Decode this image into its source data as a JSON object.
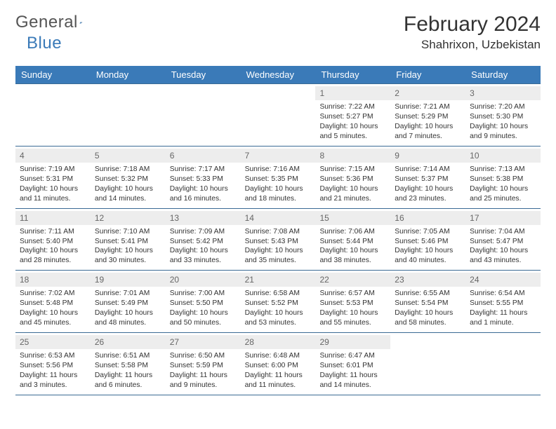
{
  "brand": {
    "word1": "General",
    "word2": "Blue"
  },
  "title": "February 2024",
  "location": "Shahrixon, Uzbekistan",
  "colors": {
    "header_bg": "#3a7ab8",
    "daynum_bg": "#ededed",
    "rule": "#3a6a94",
    "text": "#333333",
    "brand_gray": "#555555",
    "brand_blue": "#3a7ab8"
  },
  "dow": [
    "Sunday",
    "Monday",
    "Tuesday",
    "Wednesday",
    "Thursday",
    "Friday",
    "Saturday"
  ],
  "weeks": [
    [
      {
        "n": "",
        "sr": "",
        "ss": "",
        "dl": ""
      },
      {
        "n": "",
        "sr": "",
        "ss": "",
        "dl": ""
      },
      {
        "n": "",
        "sr": "",
        "ss": "",
        "dl": ""
      },
      {
        "n": "",
        "sr": "",
        "ss": "",
        "dl": ""
      },
      {
        "n": "1",
        "sr": "Sunrise: 7:22 AM",
        "ss": "Sunset: 5:27 PM",
        "dl": "Daylight: 10 hours and 5 minutes."
      },
      {
        "n": "2",
        "sr": "Sunrise: 7:21 AM",
        "ss": "Sunset: 5:29 PM",
        "dl": "Daylight: 10 hours and 7 minutes."
      },
      {
        "n": "3",
        "sr": "Sunrise: 7:20 AM",
        "ss": "Sunset: 5:30 PM",
        "dl": "Daylight: 10 hours and 9 minutes."
      }
    ],
    [
      {
        "n": "4",
        "sr": "Sunrise: 7:19 AM",
        "ss": "Sunset: 5:31 PM",
        "dl": "Daylight: 10 hours and 11 minutes."
      },
      {
        "n": "5",
        "sr": "Sunrise: 7:18 AM",
        "ss": "Sunset: 5:32 PM",
        "dl": "Daylight: 10 hours and 14 minutes."
      },
      {
        "n": "6",
        "sr": "Sunrise: 7:17 AM",
        "ss": "Sunset: 5:33 PM",
        "dl": "Daylight: 10 hours and 16 minutes."
      },
      {
        "n": "7",
        "sr": "Sunrise: 7:16 AM",
        "ss": "Sunset: 5:35 PM",
        "dl": "Daylight: 10 hours and 18 minutes."
      },
      {
        "n": "8",
        "sr": "Sunrise: 7:15 AM",
        "ss": "Sunset: 5:36 PM",
        "dl": "Daylight: 10 hours and 21 minutes."
      },
      {
        "n": "9",
        "sr": "Sunrise: 7:14 AM",
        "ss": "Sunset: 5:37 PM",
        "dl": "Daylight: 10 hours and 23 minutes."
      },
      {
        "n": "10",
        "sr": "Sunrise: 7:13 AM",
        "ss": "Sunset: 5:38 PM",
        "dl": "Daylight: 10 hours and 25 minutes."
      }
    ],
    [
      {
        "n": "11",
        "sr": "Sunrise: 7:11 AM",
        "ss": "Sunset: 5:40 PM",
        "dl": "Daylight: 10 hours and 28 minutes."
      },
      {
        "n": "12",
        "sr": "Sunrise: 7:10 AM",
        "ss": "Sunset: 5:41 PM",
        "dl": "Daylight: 10 hours and 30 minutes."
      },
      {
        "n": "13",
        "sr": "Sunrise: 7:09 AM",
        "ss": "Sunset: 5:42 PM",
        "dl": "Daylight: 10 hours and 33 minutes."
      },
      {
        "n": "14",
        "sr": "Sunrise: 7:08 AM",
        "ss": "Sunset: 5:43 PM",
        "dl": "Daylight: 10 hours and 35 minutes."
      },
      {
        "n": "15",
        "sr": "Sunrise: 7:06 AM",
        "ss": "Sunset: 5:44 PM",
        "dl": "Daylight: 10 hours and 38 minutes."
      },
      {
        "n": "16",
        "sr": "Sunrise: 7:05 AM",
        "ss": "Sunset: 5:46 PM",
        "dl": "Daylight: 10 hours and 40 minutes."
      },
      {
        "n": "17",
        "sr": "Sunrise: 7:04 AM",
        "ss": "Sunset: 5:47 PM",
        "dl": "Daylight: 10 hours and 43 minutes."
      }
    ],
    [
      {
        "n": "18",
        "sr": "Sunrise: 7:02 AM",
        "ss": "Sunset: 5:48 PM",
        "dl": "Daylight: 10 hours and 45 minutes."
      },
      {
        "n": "19",
        "sr": "Sunrise: 7:01 AM",
        "ss": "Sunset: 5:49 PM",
        "dl": "Daylight: 10 hours and 48 minutes."
      },
      {
        "n": "20",
        "sr": "Sunrise: 7:00 AM",
        "ss": "Sunset: 5:50 PM",
        "dl": "Daylight: 10 hours and 50 minutes."
      },
      {
        "n": "21",
        "sr": "Sunrise: 6:58 AM",
        "ss": "Sunset: 5:52 PM",
        "dl": "Daylight: 10 hours and 53 minutes."
      },
      {
        "n": "22",
        "sr": "Sunrise: 6:57 AM",
        "ss": "Sunset: 5:53 PM",
        "dl": "Daylight: 10 hours and 55 minutes."
      },
      {
        "n": "23",
        "sr": "Sunrise: 6:55 AM",
        "ss": "Sunset: 5:54 PM",
        "dl": "Daylight: 10 hours and 58 minutes."
      },
      {
        "n": "24",
        "sr": "Sunrise: 6:54 AM",
        "ss": "Sunset: 5:55 PM",
        "dl": "Daylight: 11 hours and 1 minute."
      }
    ],
    [
      {
        "n": "25",
        "sr": "Sunrise: 6:53 AM",
        "ss": "Sunset: 5:56 PM",
        "dl": "Daylight: 11 hours and 3 minutes."
      },
      {
        "n": "26",
        "sr": "Sunrise: 6:51 AM",
        "ss": "Sunset: 5:58 PM",
        "dl": "Daylight: 11 hours and 6 minutes."
      },
      {
        "n": "27",
        "sr": "Sunrise: 6:50 AM",
        "ss": "Sunset: 5:59 PM",
        "dl": "Daylight: 11 hours and 9 minutes."
      },
      {
        "n": "28",
        "sr": "Sunrise: 6:48 AM",
        "ss": "Sunset: 6:00 PM",
        "dl": "Daylight: 11 hours and 11 minutes."
      },
      {
        "n": "29",
        "sr": "Sunrise: 6:47 AM",
        "ss": "Sunset: 6:01 PM",
        "dl": "Daylight: 11 hours and 14 minutes."
      },
      {
        "n": "",
        "sr": "",
        "ss": "",
        "dl": ""
      },
      {
        "n": "",
        "sr": "",
        "ss": "",
        "dl": ""
      }
    ]
  ]
}
